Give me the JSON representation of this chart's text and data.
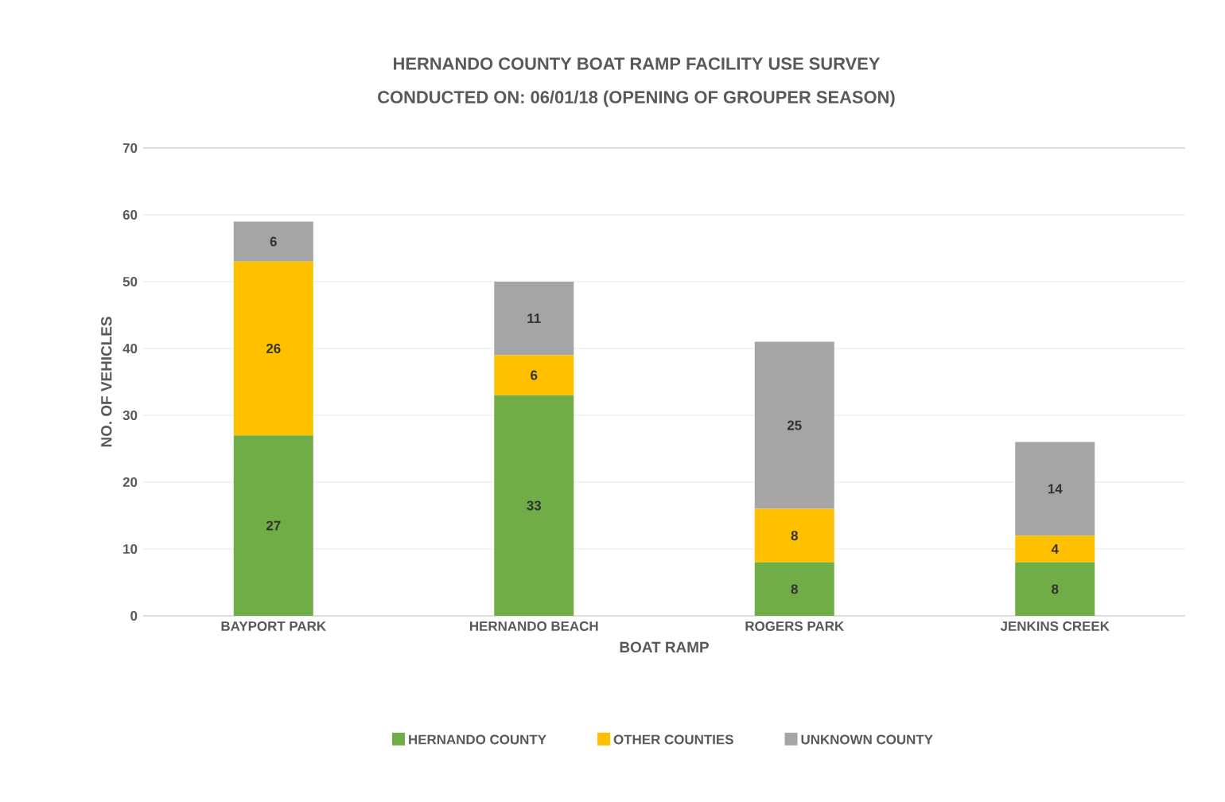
{
  "chart_data": {
    "type": "bar",
    "stacked": true,
    "title": "HERNANDO COUNTY BOAT RAMP FACILITY USE SURVEY",
    "subtitle": "CONDUCTED ON: 06/01/18 (OPENING OF GROUPER SEASON)",
    "xlabel": "BOAT RAMP",
    "ylabel": "NO. OF VEHICLES",
    "categories": [
      "BAYPORT PARK",
      "HERNANDO BEACH",
      "ROGERS PARK",
      "JENKINS CREEK"
    ],
    "series": [
      {
        "name": "HERNANDO COUNTY",
        "color": "#70ad47",
        "values": [
          27,
          33,
          8,
          8
        ]
      },
      {
        "name": "OTHER COUNTIES",
        "color": "#ffc000",
        "values": [
          26,
          6,
          8,
          4
        ]
      },
      {
        "name": "UNKNOWN COUNTY",
        "color": "#a5a5a5",
        "values": [
          6,
          11,
          25,
          14
        ]
      }
    ],
    "ylim": [
      0,
      70
    ],
    "yticks": [
      0,
      10,
      20,
      30,
      40,
      50,
      60,
      70
    ],
    "grid": "y",
    "legend": "bottom",
    "data_labels": true
  }
}
